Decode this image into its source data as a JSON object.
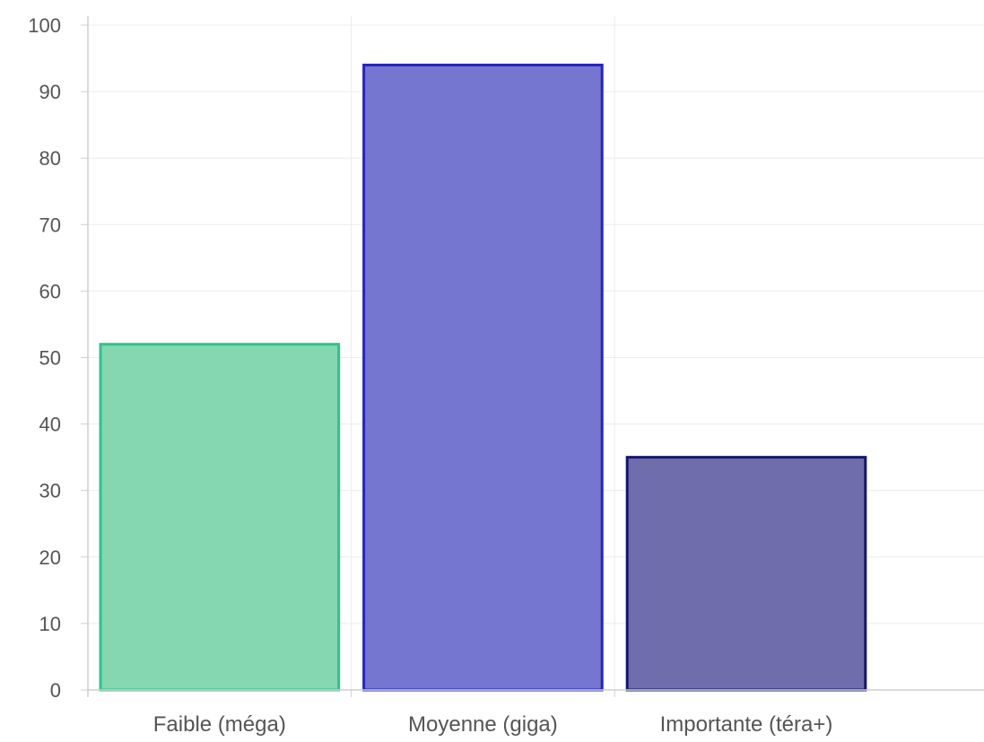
{
  "chart_data": {
    "type": "bar",
    "categories": [
      "Faible (méga)",
      "Moyenne (giga)",
      "Importante (téra+)"
    ],
    "values": [
      52,
      94,
      35
    ],
    "title": "",
    "xlabel": "",
    "ylabel": "",
    "ylim": [
      0,
      100
    ],
    "yticks": [
      0,
      10,
      20,
      30,
      40,
      50,
      60,
      70,
      80,
      90,
      100
    ],
    "grid": true,
    "legend": "none",
    "bar_fill_colors": [
      "#84d7b1",
      "#7476cf",
      "#6f6dab"
    ],
    "bar_border_colors": [
      "#2fc486",
      "#2424c0",
      "#15166e"
    ]
  }
}
